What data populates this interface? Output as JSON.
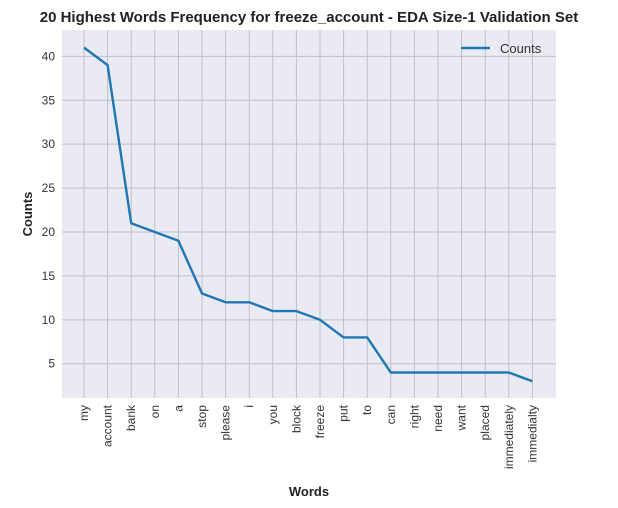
{
  "chart_data": {
    "type": "line",
    "title": "20 Highest Words Frequency for freeze_account - EDA Size-1 Validation Set",
    "xlabel": "Words",
    "ylabel": "Counts",
    "categories": [
      "my",
      "account",
      "bank",
      "on",
      "a",
      "stop",
      "please",
      "i",
      "you",
      "block",
      "freeze",
      "put",
      "to",
      "can",
      "right",
      "need",
      "want",
      "placed",
      "immediately",
      "immedialty"
    ],
    "series": [
      {
        "name": "Counts",
        "values": [
          41,
          39,
          21,
          20,
          19,
          13,
          12,
          12,
          11,
          11,
          10,
          8,
          8,
          4,
          4,
          4,
          4,
          4,
          4,
          3
        ],
        "color": "#1f77b4"
      }
    ],
    "ylim": [
      1.1,
      43
    ],
    "yticks": [
      5,
      10,
      15,
      20,
      25,
      30,
      35,
      40
    ],
    "grid": true,
    "legend_position": "top-right",
    "background_color": "#eaeaf2",
    "grid_color": "#c0c0c8"
  }
}
